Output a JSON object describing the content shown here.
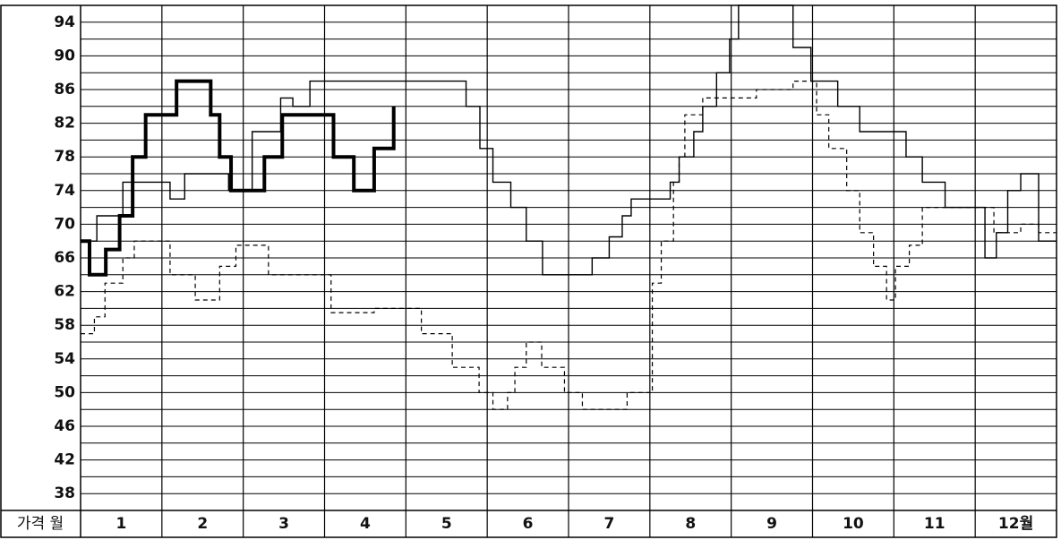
{
  "chart_data": {
    "type": "step",
    "corner_label": "가격 월",
    "categories": [
      "1",
      "2",
      "3",
      "4",
      "5",
      "6",
      "7",
      "8",
      "9",
      "10",
      "11",
      "12월"
    ],
    "xlim": [
      0,
      12
    ],
    "ylim": [
      36,
      96
    ],
    "yticks": [
      38,
      42,
      46,
      50,
      54,
      58,
      62,
      66,
      70,
      74,
      78,
      82,
      86,
      90,
      94
    ],
    "minor_yticks": [
      36,
      40,
      44,
      48,
      52,
      56,
      60,
      64,
      68,
      72,
      76,
      80,
      84,
      88,
      92,
      96
    ],
    "grid": true,
    "series": [
      {
        "color": "#000000",
        "line_width": 4,
        "dashed": false,
        "x": [
          0,
          0.11,
          0.31,
          0.48,
          0.64,
          0.8,
          1.18,
          1.6,
          1.71,
          1.85,
          2.26,
          2.48,
          3.11,
          3.36,
          3.61,
          3.85
        ],
        "values": [
          68,
          64,
          67,
          71,
          78,
          83,
          87,
          83,
          78,
          74,
          78,
          83,
          78,
          74,
          79,
          84
        ]
      },
      {
        "color": "#000000",
        "line_width": 1.4,
        "dashed": false,
        "x": [
          0,
          0.2,
          0.52,
          1.1,
          1.28,
          1.82,
          2.11,
          2.46,
          2.61,
          2.82,
          4.74,
          4.91,
          5.07,
          5.29,
          5.48,
          5.68,
          6.29,
          6.5,
          6.66,
          6.77,
          7.25,
          7.36,
          7.54,
          7.65,
          7.82,
          7.98,
          8.09,
          8.76,
          8.98,
          9.31,
          9.58,
          10.15,
          10.35,
          10.63,
          11.12,
          11.26,
          11.4,
          11.56,
          11.78,
          12
        ],
        "values": [
          68,
          71,
          75,
          73,
          76,
          74,
          81,
          85,
          84,
          87,
          84,
          79,
          75,
          72,
          68,
          64,
          66,
          68.5,
          71,
          73,
          75,
          78,
          81,
          84,
          88,
          92,
          96,
          91,
          87,
          84,
          81,
          78,
          75,
          72,
          66,
          69,
          74,
          76,
          68,
          68
        ]
      },
      {
        "color": "#000000",
        "line_width": 1.2,
        "dashed": true,
        "x": [
          0,
          0.17,
          0.3,
          0.52,
          0.66,
          1.1,
          1.41,
          1.71,
          1.91,
          2.31,
          3.08,
          3.61,
          4.19,
          4.57,
          4.9,
          5.07,
          5.25,
          5.34,
          5.48,
          5.67,
          5.95,
          6.17,
          6.72,
          7.03,
          7.14,
          7.29,
          7.36,
          7.43,
          7.65,
          8.31,
          8.76,
          9.05,
          9.2,
          9.42,
          9.58,
          9.75,
          9.91,
          10.02,
          10.19,
          10.35,
          11.23,
          11.56,
          11.78,
          12
        ],
        "values": [
          57,
          59,
          63,
          66,
          68,
          64,
          61,
          65,
          67.5,
          64,
          59.5,
          60,
          57,
          53,
          50,
          48,
          50,
          53,
          56,
          53,
          50,
          48,
          50,
          63,
          68,
          75,
          78,
          83,
          85,
          86,
          87,
          83,
          79,
          74,
          69,
          65,
          61,
          65,
          67.5,
          72,
          69,
          70,
          69,
          69
        ]
      }
    ]
  }
}
